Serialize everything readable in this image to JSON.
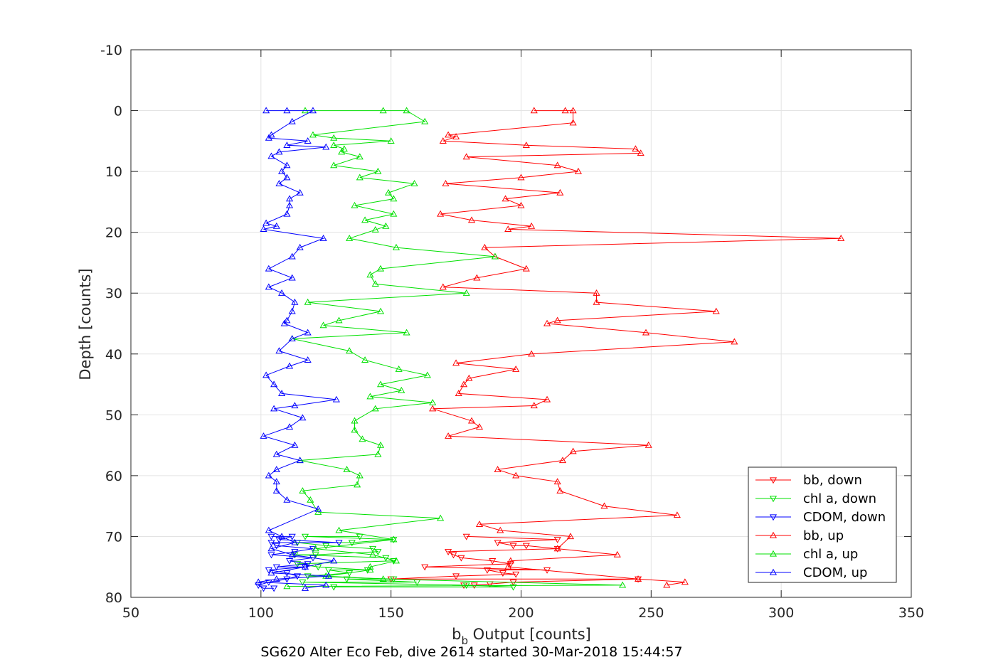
{
  "chart_data": {
    "type": "line",
    "xlabel_main": "b",
    "xlabel_sub": "b",
    "xlabel_rest": " Output [counts]",
    "ylabel": "Depth [counts]",
    "caption": "SG620 Alter Eco Feb, dive 2614 started 30-Mar-2018 15:44:57",
    "xlim": [
      50,
      350
    ],
    "ylim": [
      -10,
      80
    ],
    "y_reversed": true,
    "grid": true,
    "legend_position": "bottom-right",
    "x_ticks": [
      "50",
      "100",
      "150",
      "200",
      "250",
      "300",
      "350"
    ],
    "x_tick_values": [
      50,
      100,
      150,
      200,
      250,
      300,
      350
    ],
    "y_ticks": [
      "-10",
      "0",
      "10",
      "20",
      "30",
      "40",
      "50",
      "60",
      "70",
      "80"
    ],
    "y_tick_values": [
      -10,
      0,
      10,
      20,
      30,
      40,
      50,
      60,
      70,
      80
    ],
    "series": [
      {
        "name": "bb, down",
        "color": "#ff0000",
        "marker": "triangle-down",
        "points": [
          [
            178,
            78
          ],
          [
            182,
            78
          ],
          [
            188,
            77.8
          ],
          [
            197,
            77.5
          ],
          [
            245,
            77
          ],
          [
            150,
            77
          ],
          [
            175,
            76.5
          ],
          [
            198,
            76.2
          ],
          [
            193,
            76
          ],
          [
            187,
            75.5
          ],
          [
            210,
            75.5
          ],
          [
            163,
            75
          ],
          [
            196,
            74.5
          ],
          [
            189,
            74
          ],
          [
            177,
            73.5
          ],
          [
            174,
            73
          ],
          [
            172,
            72.5
          ],
          [
            214,
            72
          ],
          [
            202,
            71.5
          ],
          [
            197,
            71.5
          ],
          [
            191,
            71
          ],
          [
            214,
            70.5
          ],
          [
            179,
            70
          ]
        ]
      },
      {
        "name": "chl a, down",
        "color": "#00e000",
        "marker": "triangle-down",
        "points": [
          [
            128,
            78.3
          ],
          [
            197,
            78.3
          ],
          [
            179,
            78
          ],
          [
            116,
            77.5
          ],
          [
            160,
            77.5
          ],
          [
            133,
            77
          ],
          [
            151,
            77
          ],
          [
            118,
            76.5
          ],
          [
            134,
            76
          ],
          [
            126,
            75.5
          ],
          [
            141,
            75.5
          ],
          [
            122,
            75
          ],
          [
            114,
            74.5
          ],
          [
            151,
            74
          ],
          [
            148,
            73.5
          ],
          [
            113,
            73
          ],
          [
            121,
            73
          ],
          [
            145,
            72.5
          ],
          [
            143,
            72
          ],
          [
            125,
            71.5
          ],
          [
            114,
            71
          ],
          [
            135,
            71
          ],
          [
            151,
            70.5
          ],
          [
            117,
            70
          ],
          [
            138,
            70
          ]
        ]
      },
      {
        "name": "CDOM, down",
        "color": "#0000ff",
        "marker": "triangle-down",
        "points": [
          [
            105,
            78.5
          ],
          [
            101,
            78.5
          ],
          [
            99,
            78
          ],
          [
            103,
            77.5
          ],
          [
            110,
            77
          ],
          [
            114,
            76.5
          ],
          [
            110,
            76
          ],
          [
            103,
            75.5
          ],
          [
            117,
            75
          ],
          [
            106,
            75
          ],
          [
            118,
            74.5
          ],
          [
            111,
            74
          ],
          [
            120,
            73.5
          ],
          [
            104,
            73
          ],
          [
            113,
            72.5
          ],
          [
            120,
            72
          ],
          [
            106,
            71.5
          ],
          [
            104,
            71
          ],
          [
            130,
            71
          ],
          [
            107,
            70.5
          ],
          [
            112,
            70
          ],
          [
            104,
            70
          ]
        ]
      },
      {
        "name": "bb, up",
        "color": "#ff0000",
        "marker": "triangle-up",
        "points": [
          [
            205,
            0
          ],
          [
            217,
            0
          ],
          [
            220,
            0
          ],
          [
            220,
            2
          ],
          [
            172,
            4
          ],
          [
            175,
            4.3
          ],
          [
            170,
            5
          ],
          [
            202,
            5.7
          ],
          [
            244,
            6.3
          ],
          [
            246,
            7
          ],
          [
            179,
            7.6
          ],
          [
            214,
            9
          ],
          [
            222,
            10
          ],
          [
            200,
            11
          ],
          [
            171,
            12
          ],
          [
            215,
            13.5
          ],
          [
            194,
            14.5
          ],
          [
            200,
            15.6
          ],
          [
            169,
            17
          ],
          [
            181,
            18
          ],
          [
            204,
            19
          ],
          [
            195,
            19.5
          ],
          [
            323,
            21
          ],
          [
            186,
            22.5
          ],
          [
            190,
            24
          ],
          [
            202,
            26
          ],
          [
            183,
            27.5
          ],
          [
            170,
            29
          ],
          [
            229,
            30
          ],
          [
            229,
            31.5
          ],
          [
            275,
            33
          ],
          [
            214,
            34.5
          ],
          [
            210,
            35
          ],
          [
            248,
            36.5
          ],
          [
            282,
            38
          ],
          [
            204,
            40
          ],
          [
            175,
            41.5
          ],
          [
            198,
            42.5
          ],
          [
            180,
            44
          ],
          [
            178,
            45
          ],
          [
            176,
            46.5
          ],
          [
            210,
            47.5
          ],
          [
            205,
            48.5
          ],
          [
            166,
            49
          ],
          [
            181,
            51
          ],
          [
            184,
            52
          ],
          [
            172,
            53.5
          ],
          [
            249,
            55
          ],
          [
            220,
            56
          ],
          [
            216,
            57.5
          ],
          [
            191,
            59
          ],
          [
            198,
            60
          ],
          [
            214,
            61
          ],
          [
            215,
            62.5
          ],
          [
            232,
            65
          ],
          [
            260,
            66.5
          ],
          [
            184,
            68
          ],
          [
            192,
            69
          ],
          [
            219,
            70
          ],
          [
            214,
            72
          ],
          [
            237,
            73
          ],
          [
            196,
            74
          ],
          [
            195,
            75
          ],
          [
            245,
            77
          ],
          [
            263,
            77.5
          ],
          [
            256,
            78
          ]
        ]
      },
      {
        "name": "chl a, up",
        "color": "#00e000",
        "marker": "triangle-up",
        "points": [
          [
            117,
            0
          ],
          [
            147,
            0
          ],
          [
            156,
            0
          ],
          [
            163,
            1.8
          ],
          [
            120,
            4
          ],
          [
            128,
            4.5
          ],
          [
            150,
            5
          ],
          [
            128,
            5.7
          ],
          [
            132,
            6.3
          ],
          [
            131,
            6.8
          ],
          [
            138,
            7.6
          ],
          [
            128,
            9
          ],
          [
            145,
            10
          ],
          [
            138,
            11
          ],
          [
            159,
            12
          ],
          [
            149,
            13.5
          ],
          [
            151,
            14.5
          ],
          [
            136,
            15.6
          ],
          [
            151,
            17
          ],
          [
            140,
            18
          ],
          [
            148,
            19
          ],
          [
            144,
            19.6
          ],
          [
            134,
            21
          ],
          [
            152,
            22.5
          ],
          [
            190,
            24
          ],
          [
            146,
            26
          ],
          [
            142,
            27
          ],
          [
            144,
            28.5
          ],
          [
            179,
            30
          ],
          [
            118,
            31.5
          ],
          [
            146,
            33
          ],
          [
            130,
            34.5
          ],
          [
            124,
            35.3
          ],
          [
            156,
            36.5
          ],
          [
            112,
            37.5
          ],
          [
            134,
            39.5
          ],
          [
            140,
            41
          ],
          [
            153,
            42.5
          ],
          [
            164,
            43.5
          ],
          [
            146,
            45
          ],
          [
            154,
            46
          ],
          [
            142,
            47
          ],
          [
            166,
            48
          ],
          [
            144,
            49
          ],
          [
            136,
            51
          ],
          [
            136,
            52.5
          ],
          [
            139,
            54
          ],
          [
            146,
            55
          ],
          [
            145,
            56.5
          ],
          [
            115,
            57.5
          ],
          [
            133,
            59
          ],
          [
            138,
            60
          ],
          [
            137,
            61.5
          ],
          [
            116,
            62.5
          ],
          [
            119,
            64
          ],
          [
            122,
            66
          ],
          [
            169,
            67
          ],
          [
            130,
            69
          ],
          [
            151,
            70.5
          ],
          [
            121,
            72
          ],
          [
            143,
            73
          ],
          [
            152,
            74
          ],
          [
            142,
            75
          ],
          [
            142,
            75.5
          ],
          [
            125,
            76.5
          ],
          [
            147,
            77
          ],
          [
            239,
            78
          ],
          [
            110,
            78.2
          ]
        ]
      },
      {
        "name": "CDOM, up",
        "color": "#0000ff",
        "marker": "triangle-up",
        "points": [
          [
            102,
            0
          ],
          [
            110,
            0
          ],
          [
            120,
            0
          ],
          [
            112,
            1.8
          ],
          [
            104,
            4
          ],
          [
            103,
            4.5
          ],
          [
            118,
            5
          ],
          [
            110,
            5.7
          ],
          [
            125,
            6
          ],
          [
            107,
            6.8
          ],
          [
            104,
            7.5
          ],
          [
            110,
            9
          ],
          [
            108,
            10
          ],
          [
            110,
            11
          ],
          [
            107,
            12
          ],
          [
            115,
            13.5
          ],
          [
            111,
            14.5
          ],
          [
            111,
            15.6
          ],
          [
            110,
            17
          ],
          [
            102,
            18.5
          ],
          [
            106,
            19
          ],
          [
            101,
            19.5
          ],
          [
            124,
            21
          ],
          [
            115,
            22.5
          ],
          [
            112,
            24
          ],
          [
            103,
            26
          ],
          [
            112,
            27.5
          ],
          [
            103,
            29
          ],
          [
            108,
            30
          ],
          [
            113,
            31.5
          ],
          [
            112,
            33
          ],
          [
            110,
            34.5
          ],
          [
            109,
            35
          ],
          [
            118,
            36.5
          ],
          [
            112,
            37.5
          ],
          [
            107,
            39.5
          ],
          [
            118,
            41
          ],
          [
            111,
            42
          ],
          [
            102,
            43.5
          ],
          [
            105,
            45
          ],
          [
            108,
            46.5
          ],
          [
            129,
            47.5
          ],
          [
            113,
            48.5
          ],
          [
            105,
            49
          ],
          [
            116,
            50.5
          ],
          [
            111,
            52
          ],
          [
            101,
            53.5
          ],
          [
            113,
            55
          ],
          [
            106,
            56.5
          ],
          [
            115,
            57.5
          ],
          [
            106,
            59
          ],
          [
            103,
            60
          ],
          [
            106,
            61
          ],
          [
            106,
            62.5
          ],
          [
            110,
            64
          ],
          [
            122,
            65.5
          ],
          [
            103,
            69
          ],
          [
            108,
            70
          ],
          [
            113,
            71
          ],
          [
            104,
            72
          ],
          [
            112,
            73
          ],
          [
            128,
            74
          ],
          [
            117,
            75
          ],
          [
            104,
            76
          ],
          [
            126,
            76.5
          ],
          [
            106,
            77
          ],
          [
            99,
            77.5
          ],
          [
            125,
            78
          ],
          [
            117,
            78.5
          ]
        ]
      }
    ]
  }
}
